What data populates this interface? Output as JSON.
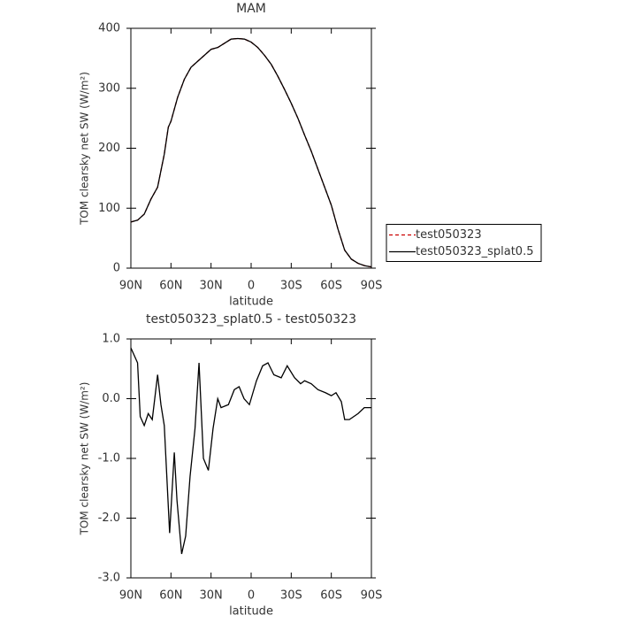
{
  "chart_data": [
    {
      "type": "line",
      "title": "MAM",
      "xlabel": "latitude",
      "ylabel": "TOM clearsky net SW (W/m²)",
      "x": [
        90,
        85,
        80,
        75,
        70,
        65,
        62,
        60,
        55,
        50,
        45,
        40,
        35,
        30,
        25,
        20,
        15,
        10,
        5,
        0,
        -5,
        -10,
        -15,
        -20,
        -25,
        -30,
        -35,
        -40,
        -45,
        -50,
        -55,
        -60,
        -65,
        -70,
        -75,
        -80,
        -85,
        -90
      ],
      "series": [
        {
          "name": "test050323",
          "color": "#cc0000",
          "line_style": "dashed",
          "values": [
            77,
            80,
            90,
            115,
            135,
            190,
            235,
            245,
            285,
            315,
            335,
            345,
            355,
            365,
            368,
            375,
            382,
            383,
            382,
            377,
            368,
            355,
            340,
            320,
            298,
            275,
            250,
            222,
            195,
            165,
            135,
            105,
            65,
            30,
            15,
            8,
            4,
            2
          ]
        },
        {
          "name": "test050323_splat0.5",
          "color": "#000000",
          "line_style": "solid",
          "values": [
            77,
            80,
            90,
            115,
            135,
            190,
            235,
            245,
            285,
            315,
            335,
            345,
            355,
            365,
            368,
            375,
            382,
            383,
            382,
            377,
            368,
            355,
            340,
            320,
            298,
            275,
            250,
            222,
            195,
            165,
            135,
            105,
            65,
            30,
            15,
            8,
            4,
            2
          ]
        }
      ],
      "xlim": [
        90,
        -90
      ],
      "xticks": [
        {
          "value": 90,
          "label": "90N"
        },
        {
          "value": 60,
          "label": "60N"
        },
        {
          "value": 30,
          "label": "30N"
        },
        0,
        {
          "value": -30,
          "label": "30S"
        },
        {
          "value": -60,
          "label": "60S"
        },
        {
          "value": -90,
          "label": "90S"
        }
      ],
      "ylim": [
        0,
        400
      ],
      "yticks": [
        0,
        100,
        200,
        300,
        400
      ],
      "legend": "right"
    },
    {
      "type": "line",
      "title": "test050323_splat0.5 - test050323",
      "xlabel": "latitude",
      "ylabel": "TOM clearsky net SW (W/m²)",
      "x": [
        90,
        89,
        85,
        83,
        80,
        77,
        74,
        70,
        67.5,
        65,
        61,
        57.5,
        55.5,
        52,
        49,
        45.7,
        42,
        39,
        35.7,
        32,
        28.5,
        25,
        22.5,
        17,
        12.6,
        9,
        5.3,
        1.3,
        -4,
        -8.6,
        -12.6,
        -17,
        -22.5,
        -27,
        -32.5,
        -37,
        -40,
        -45,
        -50,
        -55.6,
        -60,
        -63.5,
        -67.5,
        -70,
        -73.5,
        -80,
        -84.7,
        -90
      ],
      "series": [
        {
          "color": "#000000",
          "line_style": "solid",
          "values": [
            0.85,
            0.8,
            0.6,
            -0.3,
            -0.45,
            -0.25,
            -0.35,
            0.4,
            -0.1,
            -0.45,
            -2.25,
            -0.9,
            -1.7,
            -2.6,
            -2.3,
            -1.3,
            -0.5,
            0.6,
            -1.0,
            -1.2,
            -0.5,
            0.0,
            -0.15,
            -0.1,
            0.15,
            0.2,
            0.0,
            -0.1,
            0.3,
            0.55,
            0.6,
            0.4,
            0.35,
            0.55,
            0.35,
            0.25,
            0.3,
            0.25,
            0.15,
            0.1,
            0.05,
            0.1,
            -0.05,
            -0.35,
            -0.35,
            -0.25,
            -0.15,
            -0.15
          ]
        }
      ],
      "xlim": [
        90,
        -90
      ],
      "xticks": [
        {
          "value": 90,
          "label": "90N"
        },
        {
          "value": 60,
          "label": "60N"
        },
        {
          "value": 30,
          "label": "30N"
        },
        0,
        {
          "value": -30,
          "label": "30S"
        },
        {
          "value": -60,
          "label": "60S"
        },
        {
          "value": -90,
          "label": "90S"
        }
      ],
      "ylim": [
        -3,
        1
      ],
      "yticks": [
        {
          "value": -3,
          "label": "-3.0"
        },
        {
          "value": -2,
          "label": "-2.0"
        },
        {
          "value": -1,
          "label": "-1.0"
        },
        {
          "value": 0,
          "label": "0.0"
        },
        {
          "value": 1,
          "label": "1.0"
        }
      ]
    }
  ]
}
